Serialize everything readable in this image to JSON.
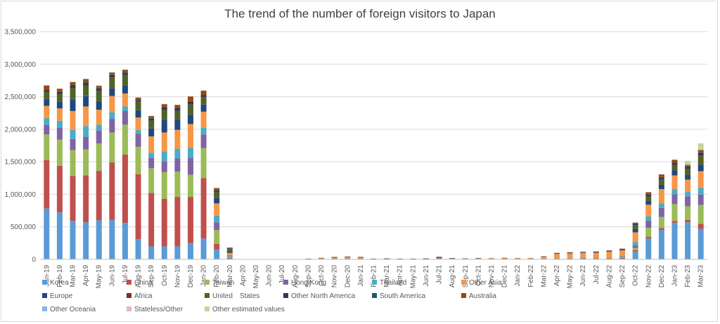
{
  "chart_data": {
    "type": "bar",
    "stacked": true,
    "title": "The trend of the number of foreign visitors to Japan",
    "xlabel": "",
    "ylabel": "",
    "ylim": [
      0,
      3500000
    ],
    "yticks": [
      "0",
      "500,000",
      "1,000,000",
      "1,500,000",
      "2,000,000",
      "2,500,000",
      "3,000,000",
      "3,500,000"
    ],
    "grid": true,
    "legend": "bottom",
    "categories": [
      "Jan-19",
      "Feb-19",
      "Mar-19",
      "Apr-19",
      "May-19",
      "Jun-19",
      "Jul-19",
      "Aug-19",
      "Sep-19",
      "Oct-19",
      "Nov-19",
      "Dec-19",
      "Jan-20",
      "Feb-20",
      "Mar-20",
      "Apr-20",
      "May-20",
      "Jun-20",
      "Jul-20",
      "Aug-20",
      "Sep-20",
      "Oct-20",
      "Nov-20",
      "Dec-20",
      "Jan-21",
      "Feb-21",
      "Mar-21",
      "Apr-21",
      "May-21",
      "Jun-21",
      "Jul-21",
      "Aug-21",
      "Sep-21",
      "Oct-21",
      "Nov-21",
      "Dec-21",
      "Jan-22",
      "Feb-22",
      "Mar-22",
      "Apr-22",
      "May-22",
      "Jun-22",
      "Jul-22",
      "Aug-22",
      "Sep-22",
      "Oct-22",
      "Nov-22",
      "Dec-22",
      "Jan-23",
      "Feb-23",
      "Mar-23"
    ],
    "series": [
      {
        "name": "Korea",
        "color": "#5b9bd5",
        "values": [
          780000,
          720000,
          590000,
          570000,
          600000,
          610000,
          560000,
          310000,
          200000,
          200000,
          200000,
          250000,
          320000,
          150000,
          16000,
          1000,
          500,
          600,
          800,
          1000,
          1500,
          2000,
          3000,
          2500,
          2500,
          1000,
          1000,
          1000,
          1000,
          1000,
          2000,
          1500,
          1000,
          1000,
          1000,
          1000,
          1000,
          800,
          1500,
          2000,
          2000,
          3000,
          4000,
          4500,
          10000,
          120000,
          320000,
          450000,
          560000,
          570000,
          470000
        ]
      },
      {
        "name": "China",
        "color": "#c0504d",
        "values": [
          750000,
          720000,
          690000,
          720000,
          760000,
          880000,
          1050000,
          1000000,
          820000,
          730000,
          760000,
          710000,
          930000,
          90000,
          10000,
          300,
          300,
          400,
          500,
          800,
          1500,
          4000,
          6000,
          8000,
          5000,
          1500,
          3000,
          2500,
          1500,
          2000,
          3500,
          2000,
          1500,
          3000,
          3000,
          2500,
          3000,
          3000,
          5000,
          8000,
          8000,
          8500,
          9500,
          10000,
          13000,
          20000,
          25000,
          30000,
          30000,
          36000,
          75000
        ]
      },
      {
        "name": "Taiwan",
        "color": "#9bbb59",
        "values": [
          390000,
          400000,
          400000,
          400000,
          420000,
          460000,
          460000,
          420000,
          380000,
          410000,
          390000,
          340000,
          460000,
          210000,
          20000,
          200,
          100,
          100,
          200,
          200,
          300,
          500,
          600,
          500,
          500,
          200,
          200,
          200,
          200,
          200,
          400,
          300,
          300,
          400,
          400,
          300,
          300,
          300,
          500,
          1000,
          3000,
          3500,
          6000,
          8000,
          15000,
          35000,
          140000,
          170000,
          260000,
          210000,
          290000
        ]
      },
      {
        "name": "Hong Kong",
        "color": "#8064a2",
        "values": [
          150000,
          180000,
          170000,
          190000,
          200000,
          210000,
          210000,
          200000,
          160000,
          170000,
          200000,
          260000,
          210000,
          120000,
          8000,
          0,
          0,
          0,
          0,
          0,
          100,
          100,
          100,
          100,
          100,
          0,
          0,
          0,
          0,
          0,
          100,
          100,
          100,
          100,
          100,
          100,
          100,
          100,
          200,
          400,
          600,
          700,
          1000,
          2000,
          5000,
          40000,
          110000,
          140000,
          150000,
          150000,
          160000
        ]
      },
      {
        "name": "Thailand",
        "color": "#4bacc6",
        "values": [
          100000,
          110000,
          140000,
          170000,
          90000,
          100000,
          70000,
          60000,
          80000,
          150000,
          150000,
          160000,
          100000,
          100000,
          10000,
          0,
          0,
          0,
          0,
          0,
          200,
          500,
          1000,
          1000,
          1000,
          500,
          500,
          500,
          500,
          500,
          1000,
          1000,
          1000,
          1000,
          1000,
          1000,
          1000,
          1000,
          2000,
          3000,
          4000,
          5000,
          6000,
          7000,
          10000,
          50000,
          65000,
          70000,
          80000,
          80000,
          110000
        ]
      },
      {
        "name": "Other Asia",
        "color": "#f79646",
        "values": [
          190000,
          190000,
          290000,
          300000,
          230000,
          250000,
          200000,
          190000,
          250000,
          290000,
          290000,
          360000,
          250000,
          190000,
          35000,
          800,
          700,
          800,
          1000,
          1200,
          4000,
          12000,
          20000,
          25000,
          22000,
          4000,
          5000,
          4000,
          3000,
          5000,
          10000,
          8000,
          7000,
          10000,
          12000,
          14000,
          13000,
          13000,
          30000,
          70000,
          75000,
          80000,
          75000,
          85000,
          85000,
          150000,
          180000,
          220000,
          210000,
          180000,
          250000
        ]
      },
      {
        "name": "Europe",
        "color": "#1f497d",
        "values": [
          100000,
          100000,
          180000,
          160000,
          130000,
          120000,
          120000,
          110000,
          120000,
          190000,
          160000,
          140000,
          110000,
          80000,
          20000,
          500,
          300,
          300,
          300,
          400,
          800,
          1500,
          2000,
          2000,
          1500,
          1000,
          1000,
          1000,
          1000,
          2000,
          8000,
          4000,
          2000,
          2000,
          2000,
          2000,
          1500,
          1500,
          3000,
          7000,
          8000,
          9000,
          10000,
          10000,
          12000,
          50000,
          60000,
          70000,
          80000,
          75000,
          100000
        ]
      },
      {
        "name": "Africa",
        "color": "#7b2e2c",
        "values": [
          3000,
          3000,
          4000,
          4000,
          3000,
          3000,
          3000,
          3000,
          3000,
          4000,
          4000,
          4000,
          3000,
          3000,
          1000,
          0,
          0,
          0,
          0,
          0,
          0,
          100,
          100,
          100,
          100,
          0,
          0,
          0,
          0,
          100,
          500,
          200,
          100,
          100,
          100,
          100,
          100,
          100,
          200,
          500,
          600,
          700,
          800,
          800,
          900,
          1500,
          2000,
          2000,
          2000,
          2000,
          2500
        ]
      },
      {
        "name": "United　States",
        "color": "#4f6228",
        "values": [
          110000,
          120000,
          170000,
          160000,
          160000,
          170000,
          160000,
          130000,
          120000,
          150000,
          130000,
          160000,
          110000,
          90000,
          40000,
          300,
          200,
          300,
          300,
          400,
          600,
          1000,
          1200,
          1500,
          1500,
          800,
          1000,
          800,
          800,
          1000,
          8000,
          2000,
          1000,
          1000,
          1000,
          1000,
          1000,
          1000,
          2000,
          4000,
          5000,
          5000,
          5000,
          6000,
          8000,
          60000,
          70000,
          80000,
          80000,
          90000,
          140000
        ]
      },
      {
        "name": "Other North America",
        "color": "#3f3151",
        "values": [
          30000,
          30000,
          40000,
          45000,
          35000,
          30000,
          30000,
          25000,
          30000,
          40000,
          40000,
          40000,
          30000,
          25000,
          10000,
          100,
          100,
          100,
          100,
          100,
          200,
          400,
          500,
          500,
          500,
          300,
          300,
          300,
          300,
          300,
          4000,
          1000,
          400,
          400,
          400,
          400,
          400,
          400,
          800,
          2000,
          2000,
          2000,
          2000,
          2000,
          3000,
          20000,
          25000,
          28000,
          28000,
          28000,
          40000
        ]
      },
      {
        "name": "South America",
        "color": "#215967",
        "values": [
          10000,
          10000,
          12000,
          12000,
          10000,
          10000,
          12000,
          10000,
          10000,
          12000,
          10000,
          10000,
          10000,
          8000,
          3000,
          0,
          0,
          0,
          0,
          0,
          100,
          100,
          200,
          200,
          200,
          100,
          100,
          100,
          100,
          100,
          1500,
          300,
          200,
          200,
          200,
          200,
          200,
          200,
          300,
          600,
          800,
          800,
          1000,
          1000,
          1000,
          4000,
          5000,
          6000,
          6000,
          7000,
          8000
        ]
      },
      {
        "name": "Australia",
        "color": "#984807",
        "values": [
          60000,
          40000,
          40000,
          40000,
          30000,
          30000,
          40000,
          30000,
          30000,
          40000,
          40000,
          70000,
          60000,
          30000,
          10000,
          100,
          100,
          100,
          100,
          100,
          100,
          200,
          300,
          300,
          300,
          100,
          100,
          100,
          100,
          100,
          1000,
          300,
          200,
          200,
          200,
          200,
          200,
          200,
          400,
          1000,
          1000,
          1000,
          1500,
          1500,
          2000,
          15000,
          30000,
          40000,
          45000,
          25000,
          35000
        ]
      },
      {
        "name": "Other Oceania",
        "color": "#8db3e2",
        "values": [
          2000,
          2000,
          2000,
          2000,
          2000,
          2000,
          2000,
          2000,
          2000,
          2000,
          2000,
          3000,
          2000,
          2000,
          500,
          0,
          0,
          0,
          0,
          0,
          0,
          0,
          0,
          0,
          0,
          0,
          0,
          0,
          0,
          0,
          200,
          50,
          50,
          50,
          50,
          50,
          50,
          50,
          100,
          200,
          200,
          200,
          300,
          300,
          300,
          1000,
          1500,
          2000,
          2000,
          1500,
          2000
        ]
      },
      {
        "name": "Stateless/Other",
        "color": "#e6b9b8",
        "values": [
          500,
          500,
          500,
          500,
          500,
          500,
          500,
          500,
          500,
          500,
          500,
          500,
          500,
          400,
          200,
          0,
          0,
          0,
          0,
          0,
          0,
          0,
          0,
          0,
          0,
          0,
          0,
          0,
          0,
          0,
          100,
          0,
          0,
          0,
          0,
          0,
          0,
          0,
          0,
          50,
          50,
          50,
          50,
          50,
          50,
          200,
          300,
          300,
          300,
          300,
          300
        ]
      },
      {
        "name": "Other estimated values",
        "color": "#c3d69b",
        "values": [
          0,
          0,
          0,
          0,
          0,
          0,
          0,
          0,
          0,
          0,
          0,
          0,
          0,
          0,
          0,
          0,
          0,
          0,
          0,
          0,
          0,
          0,
          0,
          0,
          0,
          0,
          0,
          0,
          0,
          0,
          0,
          0,
          0,
          0,
          0,
          0,
          0,
          0,
          0,
          0,
          0,
          0,
          0,
          0,
          0,
          0,
          0,
          0,
          0,
          60000,
          100000
        ]
      }
    ]
  }
}
